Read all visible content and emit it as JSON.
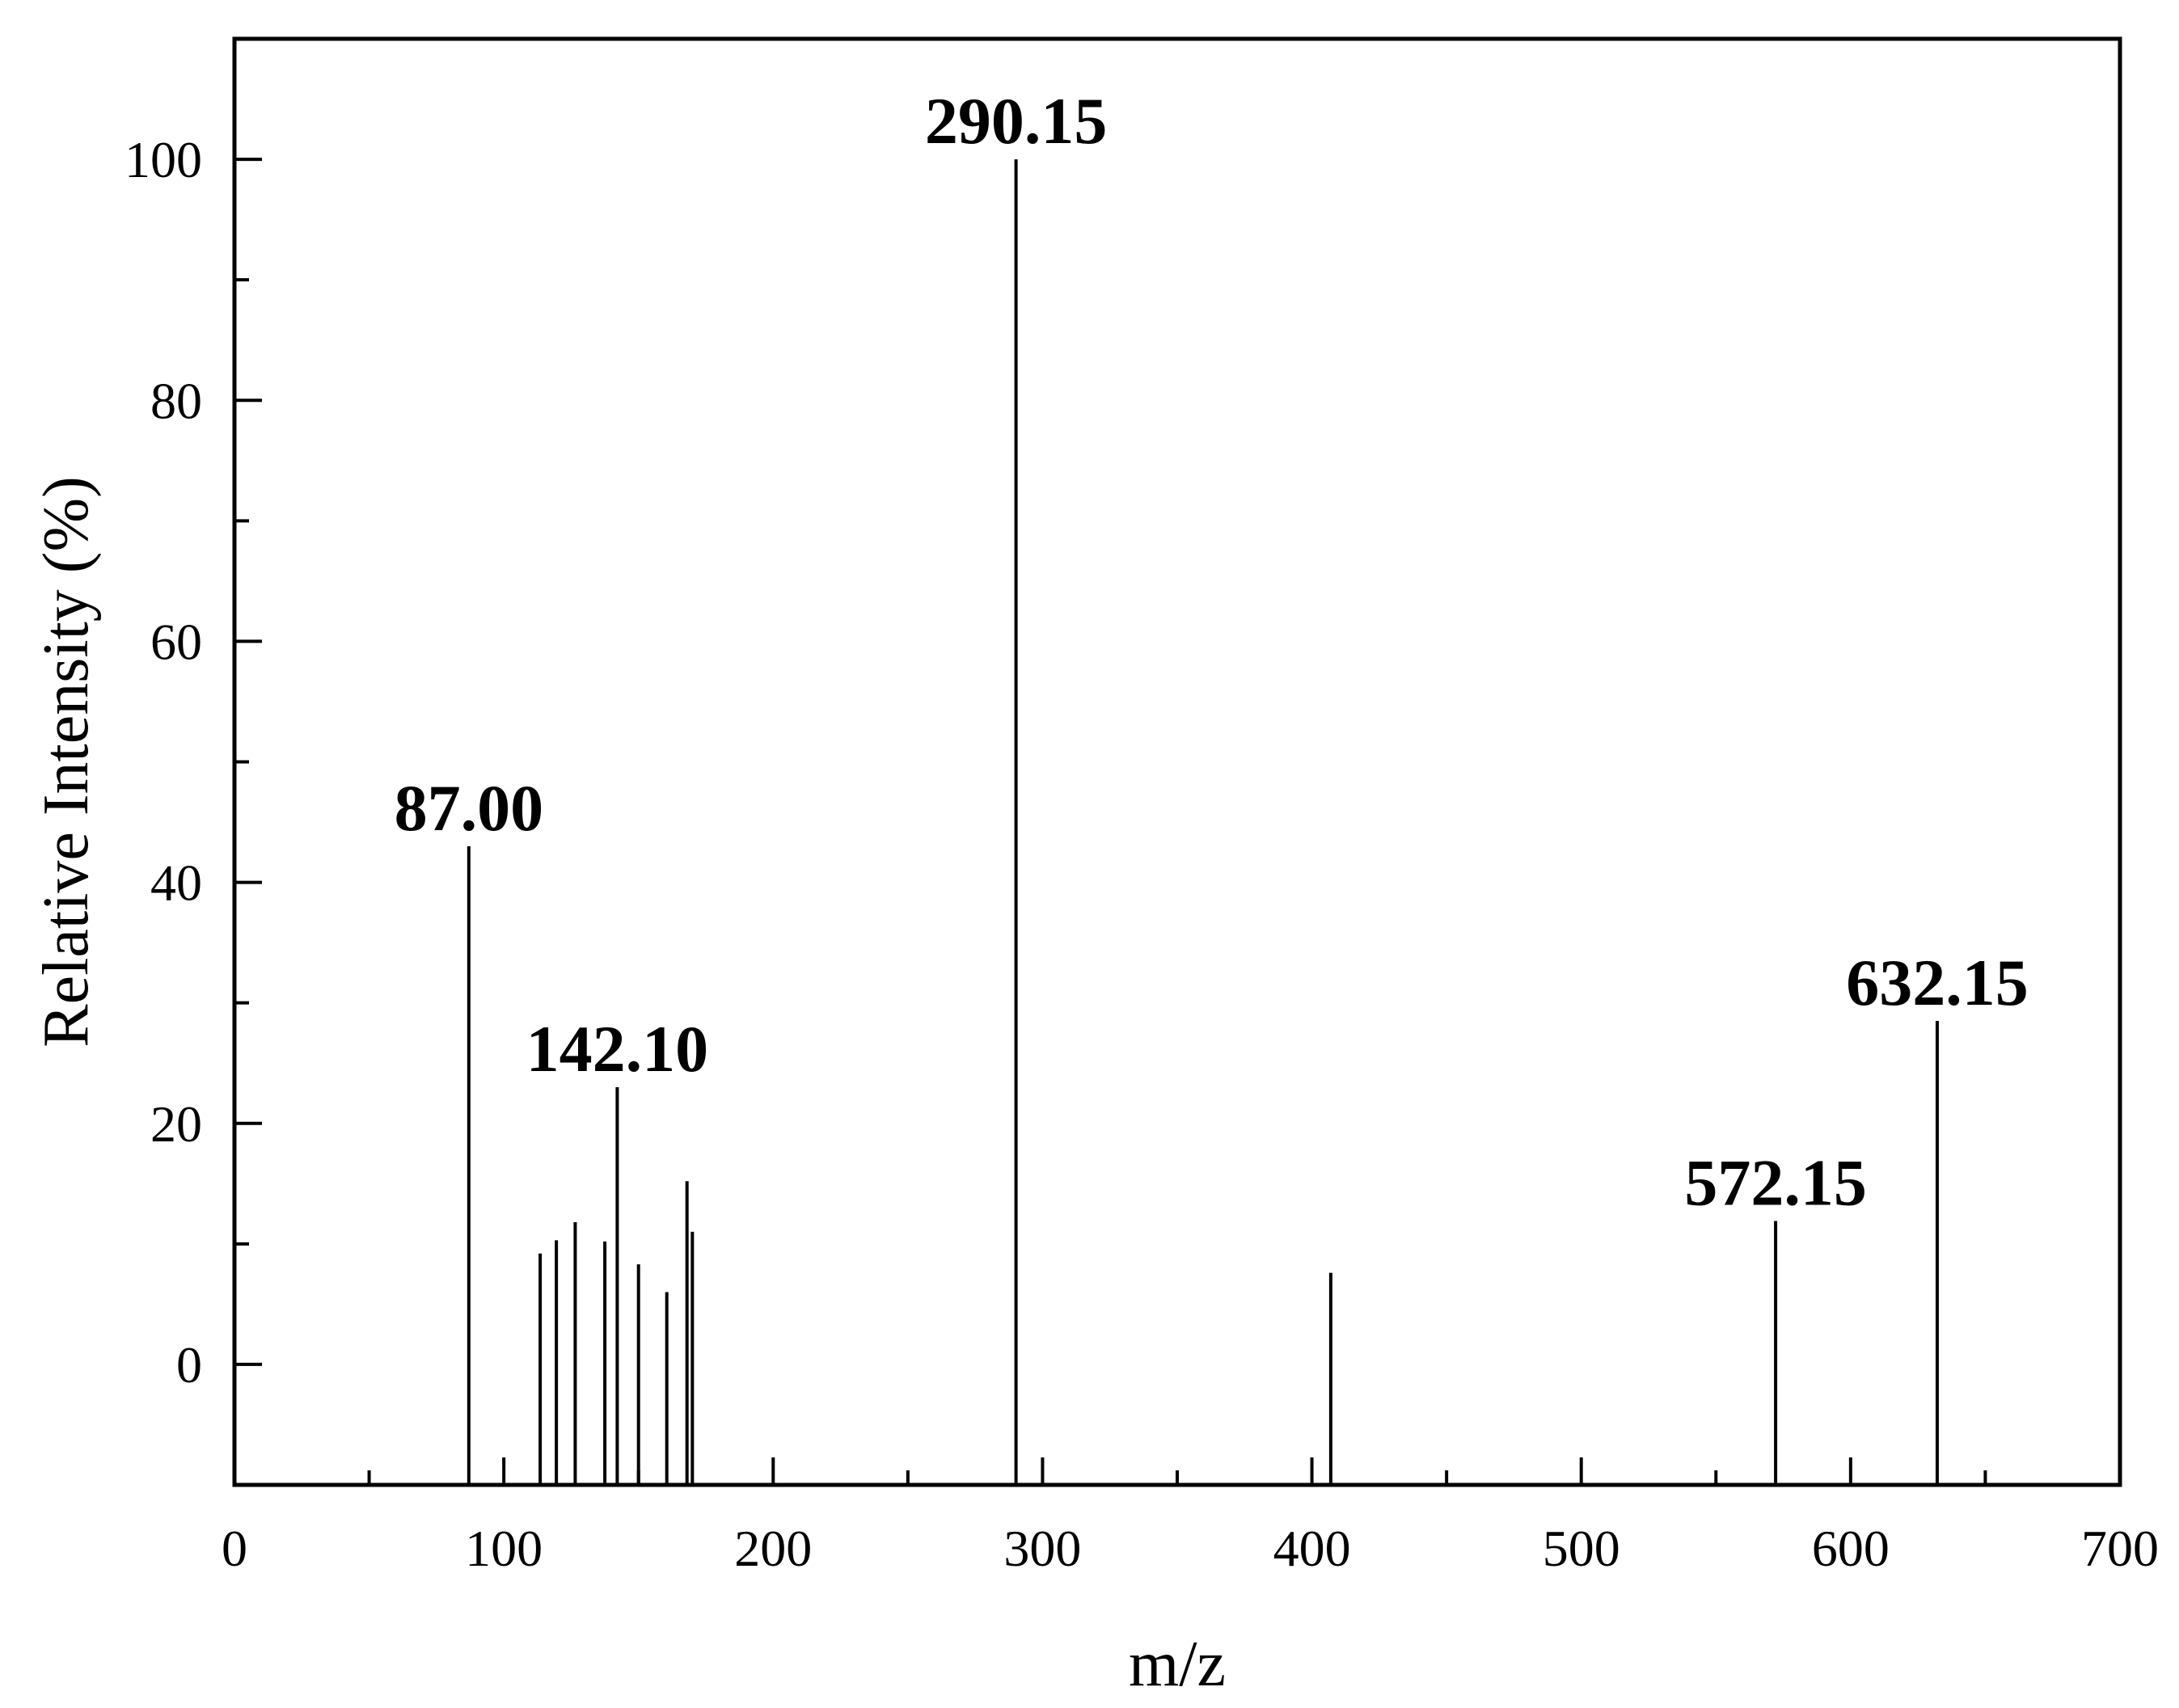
{
  "chart_data": {
    "type": "bar",
    "title": "",
    "xlabel": "m/z",
    "ylabel": "Relative Intensity (%)",
    "xlim": [
      0,
      700
    ],
    "ylim": [
      -10,
      110
    ],
    "x_ticks": [
      0,
      100,
      200,
      300,
      400,
      500,
      600,
      700
    ],
    "x_tick_labels": [
      "0",
      "100",
      "200",
      "300",
      "400",
      "500",
      "600",
      "700"
    ],
    "y_ticks": [
      0,
      20,
      40,
      60,
      80,
      100
    ],
    "y_tick_labels": [
      "0",
      "20",
      "40",
      "60",
      "80",
      "100"
    ],
    "grid": false,
    "legend": "none",
    "peaks": [
      {
        "mz": 87.0,
        "intensity": 43,
        "label": "87.00"
      },
      {
        "mz": 113.5,
        "intensity": 9.2
      },
      {
        "mz": 119.5,
        "intensity": 10.3
      },
      {
        "mz": 126.5,
        "intensity": 11.8
      },
      {
        "mz": 137.5,
        "intensity": 10.2
      },
      {
        "mz": 142.1,
        "intensity": 23,
        "label": "142.10"
      },
      {
        "mz": 150.0,
        "intensity": 8.3
      },
      {
        "mz": 160.5,
        "intensity": 6.0
      },
      {
        "mz": 168.0,
        "intensity": 15.2
      },
      {
        "mz": 170.0,
        "intensity": 11.0
      },
      {
        "mz": 290.15,
        "intensity": 100,
        "label": "290.15"
      },
      {
        "mz": 407.0,
        "intensity": 7.6
      },
      {
        "mz": 572.15,
        "intensity": 11.9,
        "label": "572.15"
      },
      {
        "mz": 632.15,
        "intensity": 28.5,
        "label": "632.15"
      }
    ]
  }
}
